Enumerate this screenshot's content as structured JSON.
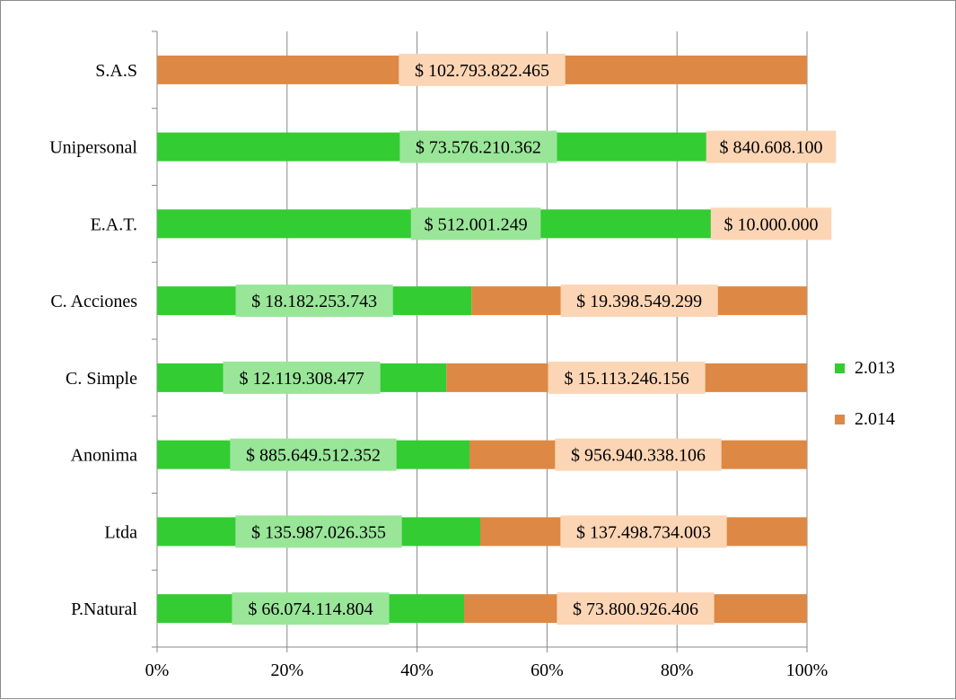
{
  "chart_data": {
    "type": "bar",
    "orientation": "horizontal",
    "stacking": "percent",
    "title": "",
    "xlabel": "",
    "ylabel": "",
    "xlim": [
      0,
      100
    ],
    "x_ticks": [
      "0%",
      "20%",
      "40%",
      "60%",
      "80%",
      "100%"
    ],
    "grid": true,
    "legend_position": "right",
    "categories": [
      "P.Natural",
      "Ltda",
      "Anonima",
      "C. Simple",
      "C. Acciones",
      "E.A.T.",
      "Unipersonal",
      "S.A.S"
    ],
    "series": [
      {
        "name": "2.013",
        "color": "#33cc33",
        "label_bg": "#99e699",
        "values": [
          66074114804,
          135987026355,
          885649512352,
          12119308477,
          18182253743,
          512001249,
          73576210362,
          0
        ],
        "labels": [
          "$ 66.074.114.804",
          "$ 135.987.026.355",
          "$ 885.649.512.352",
          "$ 12.119.308.477",
          "$ 18.182.253.743",
          "$ 512.001.249",
          "$ 73.576.210.362",
          ""
        ]
      },
      {
        "name": "2.014",
        "color": "#dd8844",
        "label_bg": "#fcd5b5",
        "values": [
          73800926406,
          137498734003,
          956940338106,
          15113246156,
          19398549299,
          10000000,
          840608100,
          102793822465
        ],
        "labels": [
          "$ 73.800.926.406",
          "$ 137.498.734.003",
          "$ 956.940.338.106",
          "$ 15.113.246.156",
          "$ 19.398.549.299",
          "$ 10.000.000",
          "$ 840.608.100",
          "$ 102.793.822.465"
        ]
      }
    ]
  }
}
